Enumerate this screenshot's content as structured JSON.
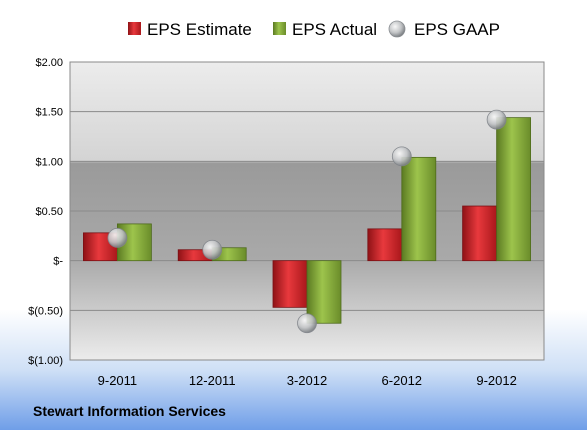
{
  "chart_data": {
    "type": "bar",
    "categories": [
      "9-2011",
      "12-2011",
      "3-2012",
      "6-2012",
      "9-2012"
    ],
    "series": [
      {
        "name": "EPS Estimate",
        "kind": "bar",
        "color": "#d9262b",
        "values": [
          0.28,
          0.11,
          -0.47,
          0.32,
          0.55
        ]
      },
      {
        "name": "EPS Actual",
        "kind": "bar",
        "color": "#8cb43e",
        "values": [
          0.37,
          0.13,
          -0.63,
          1.04,
          1.44
        ]
      },
      {
        "name": "EPS GAAP",
        "kind": "marker",
        "color": "#c0c4c8",
        "values": [
          0.23,
          0.11,
          -0.63,
          1.05,
          1.42
        ]
      }
    ],
    "ylim": [
      -1.0,
      2.0
    ],
    "yticks": [
      2.0,
      1.5,
      1.0,
      0.5,
      0.0,
      -0.5,
      -1.0
    ],
    "ytick_labels": [
      "$2.00",
      "$1.50",
      "$1.00",
      "$0.50",
      "$-",
      "$(0.50)",
      "$(1.00)"
    ],
    "grid": true,
    "legend_position": "top",
    "footer": "Stewart Information Services"
  }
}
